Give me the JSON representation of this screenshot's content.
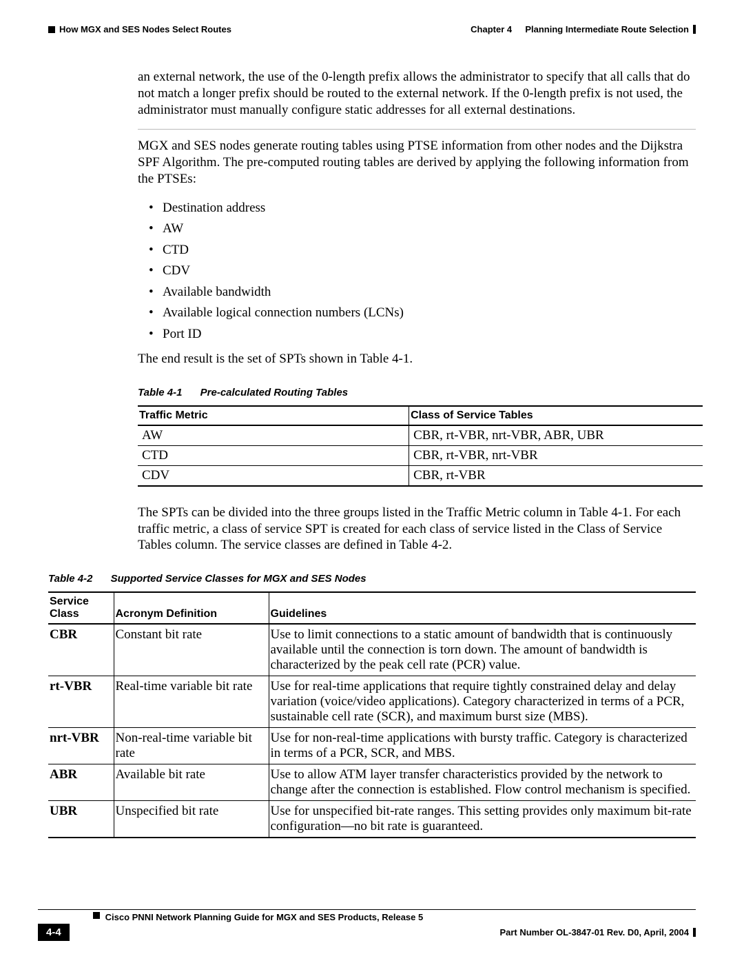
{
  "header": {
    "left": "How MGX and SES Nodes Select Routes",
    "chapter_label": "Chapter 4",
    "chapter_title": "Planning Intermediate Route Selection"
  },
  "paras": {
    "p1": "an external network, the use of the 0-length prefix allows the administrator to specify that all calls that do not match a longer prefix should be routed to the external network. If the 0-length prefix is not used, the administrator must manually configure static addresses for all external destinations.",
    "p2": "MGX and SES nodes generate routing tables using PTSE information from other nodes and the Dijkstra SPF Algorithm. The pre-computed routing tables are derived by applying the following information from the PTSEs:",
    "p3": "The end result is the set of SPTs shown in Table 4-1.",
    "p4": "The SPTs can be divided into the three groups listed in the Traffic Metric column in Table 4-1. For each traffic metric, a class of service SPT is created for each class of service listed in the Class of Service Tables column. The service classes are defined in Table 4-2."
  },
  "bullets": [
    "Destination address",
    "AW",
    "CTD",
    "CDV",
    "Available bandwidth",
    "Available logical connection numbers (LCNs)",
    "Port ID"
  ],
  "table1": {
    "caption_num": "Table 4-1",
    "caption_title": "Pre-calculated Routing Tables",
    "headers": [
      "Traffic Metric",
      "Class of Service Tables"
    ],
    "rows": [
      [
        "AW",
        "CBR, rt-VBR, nrt-VBR, ABR, UBR"
      ],
      [
        "CTD",
        "CBR, rt-VBR, nrt-VBR"
      ],
      [
        "CDV",
        "CBR, rt-VBR"
      ]
    ]
  },
  "table2": {
    "caption_num": "Table 4-2",
    "caption_title": "Supported Service Classes for MGX and SES Nodes",
    "headers": [
      "Service Class",
      "Acronym Definition",
      "Guidelines"
    ],
    "rows": [
      [
        "CBR",
        "Constant bit rate",
        "Use to limit connections to a static amount of bandwidth that is continuously available until the connection is torn down. The amount of bandwidth is characterized by the peak cell rate (PCR) value."
      ],
      [
        "rt-VBR",
        "Real-time variable bit rate",
        "Use for real-time applications that require tightly constrained delay and delay variation (voice/video applications). Category characterized in terms of a PCR, sustainable cell rate (SCR), and maximum burst size (MBS)."
      ],
      [
        "nrt-VBR",
        "Non-real-time variable bit rate",
        "Use for non-real-time applications with bursty traffic. Category is characterized in terms of a PCR, SCR, and MBS."
      ],
      [
        "ABR",
        "Available bit rate",
        "Use to allow ATM layer transfer characteristics provided by the network to change after the connection is established. Flow control mechanism is specified."
      ],
      [
        "UBR",
        "Unspecified bit rate",
        "Use for unspecified bit-rate ranges. This setting provides only maximum bit-rate configuration—no bit rate is guaranteed."
      ]
    ]
  },
  "footer": {
    "guide": "Cisco PNNI Network Planning Guide  for MGX and SES Products, Release 5",
    "page": "4-4",
    "part": "Part Number OL-3847-01 Rev. D0, April, 2004"
  }
}
